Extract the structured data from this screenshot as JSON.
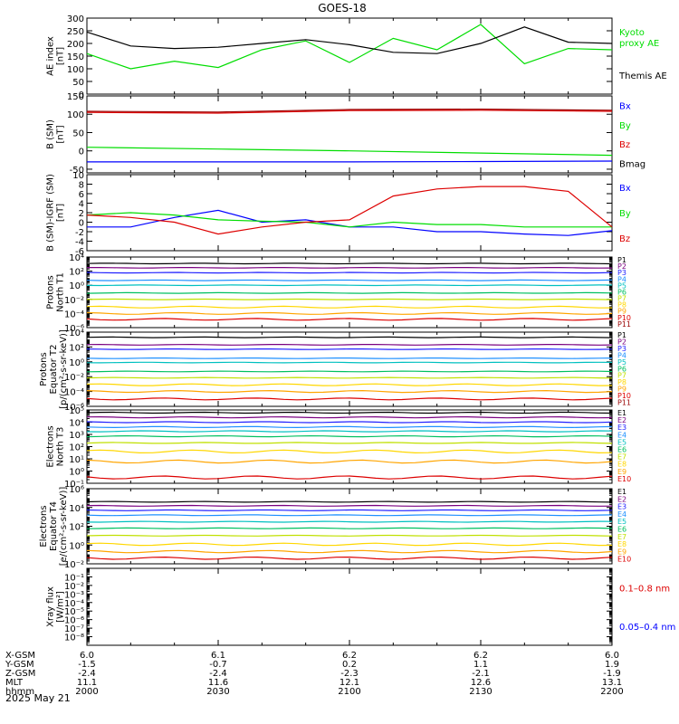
{
  "title": "GOES-18",
  "date_label": "2025 May 21",
  "x_axis": {
    "rows": [
      {
        "name": "X-GSM",
        "values": [
          "6.0",
          "6.1",
          "6.2",
          "6.2",
          "6.0"
        ]
      },
      {
        "name": "Y-GSM",
        "values": [
          "-1.5",
          "-0.7",
          "0.2",
          "1.1",
          "1.9"
        ]
      },
      {
        "name": "Z-GSM",
        "values": [
          "-2.4",
          "-2.4",
          "-2.3",
          "-2.1",
          "-1.9"
        ]
      },
      {
        "name": "MLT",
        "values": [
          "11.1",
          "11.6",
          "12.1",
          "12.6",
          "13.1"
        ]
      },
      {
        "name": "hhmm",
        "values": [
          "2000",
          "2030",
          "2100",
          "2130",
          "2200"
        ]
      }
    ]
  },
  "colors": {
    "black": "#000000",
    "green": "#00dd00",
    "blue": "#0000ff",
    "red": "#dd0000",
    "darkred": "#990000",
    "ch": [
      "#000000",
      "#7a0080",
      "#2222ff",
      "#1e90ff",
      "#00c0c0",
      "#00c060",
      "#c0e000",
      "#ffd700",
      "#ffa500",
      "#dd0000",
      "#990000"
    ]
  },
  "panels": [
    {
      "id": "ae",
      "ylabel": [
        "AE index",
        "[nT]"
      ],
      "scale": "linear",
      "ylim": [
        0,
        300
      ],
      "ticks": [
        "0",
        "50",
        "100",
        "150",
        "200",
        "250",
        "300"
      ],
      "tickvals": [
        0,
        50,
        100,
        150,
        200,
        250,
        300
      ],
      "legend": [
        {
          "lines": [
            "Kyoto",
            "proxy AE"
          ],
          "color": "#00dd00"
        },
        {
          "lines": [
            "Themis AE"
          ],
          "color": "#000000"
        }
      ]
    },
    {
      "id": "bsm",
      "ylabel": [
        "B (SM)",
        "[nT]"
      ],
      "scale": "linear",
      "ylim": [
        -60,
        150
      ],
      "ticks": [
        "-50",
        "0",
        "50",
        "100",
        "150"
      ],
      "tickvals": [
        -50,
        0,
        50,
        100,
        150
      ],
      "legend": [
        {
          "lines": [
            "Bx"
          ],
          "color": "#0000ff"
        },
        {
          "lines": [
            "By"
          ],
          "color": "#00dd00"
        },
        {
          "lines": [
            "Bz"
          ],
          "color": "#dd0000"
        },
        {
          "lines": [
            "Bmag"
          ],
          "color": "#000000"
        }
      ]
    },
    {
      "id": "bigrf",
      "ylabel": [
        "B (SM)-IGRF (SM)",
        "[nT]"
      ],
      "scale": "linear",
      "ylim": [
        -6,
        10
      ],
      "ticks": [
        "-6",
        "-4",
        "-2",
        "0",
        "2",
        "4",
        "6",
        "8",
        "10"
      ],
      "tickvals": [
        -6,
        -4,
        -2,
        0,
        2,
        4,
        6,
        8,
        10
      ],
      "legend": [
        {
          "lines": [
            "Bx"
          ],
          "color": "#0000ff"
        },
        {
          "lines": [
            "By"
          ],
          "color": "#00dd00"
        },
        {
          "lines": [
            "Bz"
          ],
          "color": "#dd0000"
        }
      ]
    },
    {
      "id": "protons_t1",
      "ylabel": [
        "Protons",
        "North T1"
      ],
      "scale": "log",
      "ylim": [
        -6,
        4
      ],
      "ticks": [
        "10⁻⁶",
        "10⁻⁴",
        "10⁻²",
        "10⁰",
        "10²",
        "10⁴"
      ],
      "tickvals": [
        -6,
        -4,
        -2,
        0,
        2,
        4
      ],
      "channels": [
        "P1",
        "P2",
        "P3",
        "P4",
        "P5",
        "P6",
        "P7",
        "P8",
        "P9",
        "P10",
        "P11"
      ]
    },
    {
      "id": "protons_t2",
      "ylabel": [
        "Protons",
        "Equator T2",
        "[p/(cm²-s-sr-keV)]"
      ],
      "scale": "log",
      "ylim": [
        -6,
        4
      ],
      "ticks": [
        "10⁻⁶",
        "10⁻⁴",
        "10⁻²",
        "10⁰",
        "10²",
        "10⁴"
      ],
      "tickvals": [
        -6,
        -4,
        -2,
        0,
        2,
        4
      ],
      "channels": [
        "P1",
        "P2",
        "P3",
        "P4",
        "P5",
        "P6",
        "P7",
        "P8",
        "P9",
        "P10",
        "P11"
      ]
    },
    {
      "id": "electrons_t3",
      "ylabel": [
        "Electrons",
        "North T3"
      ],
      "scale": "log",
      "ylim": [
        -1,
        5
      ],
      "ticks": [
        "10⁻¹",
        "10⁰",
        "10¹",
        "10²",
        "10³",
        "10⁴",
        "10⁵"
      ],
      "tickvals": [
        -1,
        0,
        1,
        2,
        3,
        4,
        5
      ],
      "channels": [
        "E1",
        "E2",
        "E3",
        "E4",
        "E5",
        "E6",
        "E7",
        "E8",
        "E9",
        "E10"
      ]
    },
    {
      "id": "electrons_t4",
      "ylabel": [
        "Electrons",
        "Equator T4",
        "[e/(cm²-s-sr-keV)]"
      ],
      "scale": "log",
      "ylim": [
        -2,
        6
      ],
      "ticks": [
        "10⁻²",
        "10⁰",
        "10²",
        "10⁴",
        "10⁶"
      ],
      "tickvals": [
        -2,
        0,
        2,
        4,
        6
      ],
      "channels": [
        "E1",
        "E2",
        "E3",
        "E4",
        "E5",
        "E6",
        "E7",
        "E8",
        "E9",
        "E10"
      ]
    },
    {
      "id": "xray",
      "ylabel": [
        "Xray flux",
        "[W/m²]"
      ],
      "scale": "log",
      "ylim": [
        -9,
        0
      ],
      "ticks": [
        "10⁻⁸",
        "10⁻⁷",
        "10⁻⁶",
        "10⁻⁵",
        "10⁻⁴",
        "10⁻³",
        "10⁻²",
        "10⁻¹"
      ],
      "tickvals": [
        -8,
        -7,
        -6,
        -5,
        -4,
        -3,
        -2,
        -1
      ],
      "legend": [
        {
          "lines": [
            "0.1–0.8 nm"
          ],
          "color": "#dd0000"
        },
        {
          "lines": [
            "0.05–0.4 nm"
          ],
          "color": "#0000ff"
        }
      ]
    }
  ],
  "chart_data": [
    {
      "type": "line",
      "title": "GOES-18",
      "ylabel": "AE index [nT]",
      "ylim": [
        0,
        300
      ],
      "x": [
        "2000",
        "2010",
        "2020",
        "2030",
        "2040",
        "2050",
        "2100",
        "2110",
        "2120",
        "2130",
        "2140",
        "2150",
        "2200"
      ],
      "series": [
        {
          "name": "Kyoto proxy AE",
          "values": [
            160,
            100,
            130,
            105,
            175,
            210,
            125,
            220,
            175,
            275,
            120,
            180,
            175
          ]
        },
        {
          "name": "Themis AE",
          "values": [
            245,
            190,
            180,
            185,
            200,
            215,
            195,
            165,
            160,
            200,
            265,
            205,
            200
          ]
        }
      ]
    },
    {
      "type": "line",
      "ylabel": "B (SM) [nT]",
      "ylim": [
        -60,
        150
      ],
      "x": [
        "2000",
        "2030",
        "2100",
        "2130",
        "2200"
      ],
      "series": [
        {
          "name": "Bx",
          "values": [
            -30,
            -30,
            -30,
            -29,
            -28
          ]
        },
        {
          "name": "By",
          "values": [
            10,
            5,
            0,
            -6,
            -12
          ]
        },
        {
          "name": "Bz",
          "values": [
            105,
            103,
            110,
            111,
            108
          ]
        },
        {
          "name": "Bmag",
          "values": [
            108,
            106,
            113,
            114,
            111
          ]
        }
      ]
    },
    {
      "type": "line",
      "ylabel": "B (SM)-IGRF (SM) [nT]",
      "ylim": [
        -6,
        10
      ],
      "x": [
        "2000",
        "2010",
        "2020",
        "2030",
        "2040",
        "2050",
        "2100",
        "2110",
        "2120",
        "2130",
        "2140",
        "2150",
        "2200"
      ],
      "series": [
        {
          "name": "Bx",
          "values": [
            -1.0,
            -1.0,
            1.0,
            2.5,
            0.0,
            0.5,
            -1.0,
            -1.0,
            -2.0,
            -2.0,
            -2.5,
            -2.8,
            -1.8
          ]
        },
        {
          "name": "By",
          "values": [
            1.5,
            2.0,
            1.5,
            0.5,
            0.2,
            0.0,
            -1.0,
            0.0,
            -0.5,
            -0.5,
            -1.0,
            -1.0,
            -1.0
          ]
        },
        {
          "name": "Bz",
          "values": [
            1.5,
            1.0,
            0.0,
            -2.5,
            -1.0,
            0.0,
            0.5,
            5.5,
            7.0,
            7.5,
            7.5,
            6.5,
            -1.0
          ]
        }
      ]
    },
    {
      "type": "line",
      "ylabel": "Protons North T1",
      "scale": "log",
      "ylim": [
        1e-06,
        10000
      ],
      "x": [
        "2000",
        "2200"
      ],
      "series": [
        {
          "name": "P1",
          "values": [
            1200,
            1200
          ]
        },
        {
          "name": "P2",
          "values": [
            300,
            300
          ]
        },
        {
          "name": "P3",
          "values": [
            60,
            60
          ]
        },
        {
          "name": "P4",
          "values": [
            5,
            5
          ]
        },
        {
          "name": "P5",
          "values": [
            1,
            1
          ]
        },
        {
          "name": "P6",
          "values": [
            0.08,
            0.08
          ]
        },
        {
          "name": "P7",
          "values": [
            0.01,
            0.01
          ]
        },
        {
          "name": "P8",
          "values": [
            0.0008,
            0.0008
          ]
        },
        {
          "name": "P9",
          "values": [
            0.0001,
            0.0001
          ]
        },
        {
          "name": "P10",
          "values": [
            1.5e-05,
            1.5e-05
          ]
        }
      ]
    },
    {
      "type": "line",
      "ylabel": "Protons Equator T2 [p/(cm²-s-sr-keV)]",
      "scale": "log",
      "ylim": [
        1e-06,
        10000
      ],
      "x": [
        "2000",
        "2200"
      ],
      "series": [
        {
          "name": "P1",
          "values": [
            2000,
            2000
          ]
        },
        {
          "name": "P2",
          "values": [
            200,
            200
          ]
        },
        {
          "name": "P3",
          "values": [
            50,
            50
          ]
        },
        {
          "name": "P4",
          "values": [
            3,
            3
          ]
        },
        {
          "name": "P5",
          "values": [
            0.8,
            0.8
          ]
        },
        {
          "name": "P6",
          "values": [
            0.05,
            0.05
          ]
        },
        {
          "name": "P7",
          "values": [
            0.007,
            0.007
          ]
        },
        {
          "name": "P8",
          "values": [
            0.0008,
            0.0008
          ]
        },
        {
          "name": "P9",
          "values": [
            0.0001,
            0.0001
          ]
        },
        {
          "name": "P10",
          "values": [
            1e-05,
            1e-05
          ]
        }
      ]
    },
    {
      "type": "line",
      "ylabel": "Electrons North T3",
      "scale": "log",
      "ylim": [
        0.1,
        100000
      ],
      "x": [
        "2000",
        "2200"
      ],
      "series": [
        {
          "name": "E1",
          "values": [
            60000,
            60000
          ]
        },
        {
          "name": "E2",
          "values": [
            25000,
            25000
          ]
        },
        {
          "name": "E3",
          "values": [
            10000,
            10000
          ]
        },
        {
          "name": "E4",
          "values": [
            4000,
            4000
          ]
        },
        {
          "name": "E5",
          "values": [
            1800,
            1800
          ]
        },
        {
          "name": "E6",
          "values": [
            700,
            700
          ]
        },
        {
          "name": "E7",
          "values": [
            200,
            200
          ]
        },
        {
          "name": "E8",
          "values": [
            40,
            40
          ]
        },
        {
          "name": "E9",
          "values": [
            6,
            6
          ]
        },
        {
          "name": "E10",
          "values": [
            0.3,
            0.3
          ]
        }
      ]
    },
    {
      "type": "line",
      "ylabel": "Electrons Equator T4 [e/(cm²-s-sr-keV)]",
      "scale": "log",
      "ylim": [
        0.01,
        1000000
      ],
      "x": [
        "2000",
        "2200"
      ],
      "series": [
        {
          "name": "E1",
          "values": [
            40000,
            40000
          ]
        },
        {
          "name": "E2",
          "values": [
            15000,
            15000
          ]
        },
        {
          "name": "E3",
          "values": [
            5000,
            5000
          ]
        },
        {
          "name": "E4",
          "values": [
            1500,
            1500
          ]
        },
        {
          "name": "E5",
          "values": [
            300,
            300
          ]
        },
        {
          "name": "E6",
          "values": [
            60,
            60
          ]
        },
        {
          "name": "E7",
          "values": [
            10,
            10
          ]
        },
        {
          "name": "E8",
          "values": [
            1.2,
            1.2
          ]
        },
        {
          "name": "E9",
          "values": [
            0.2,
            0.2
          ]
        },
        {
          "name": "E10",
          "values": [
            0.04,
            0.04
          ]
        }
      ]
    },
    {
      "type": "line",
      "ylabel": "Xray flux [W/m²]",
      "scale": "log",
      "ylim": [
        1e-09,
        1
      ],
      "series": []
    }
  ]
}
